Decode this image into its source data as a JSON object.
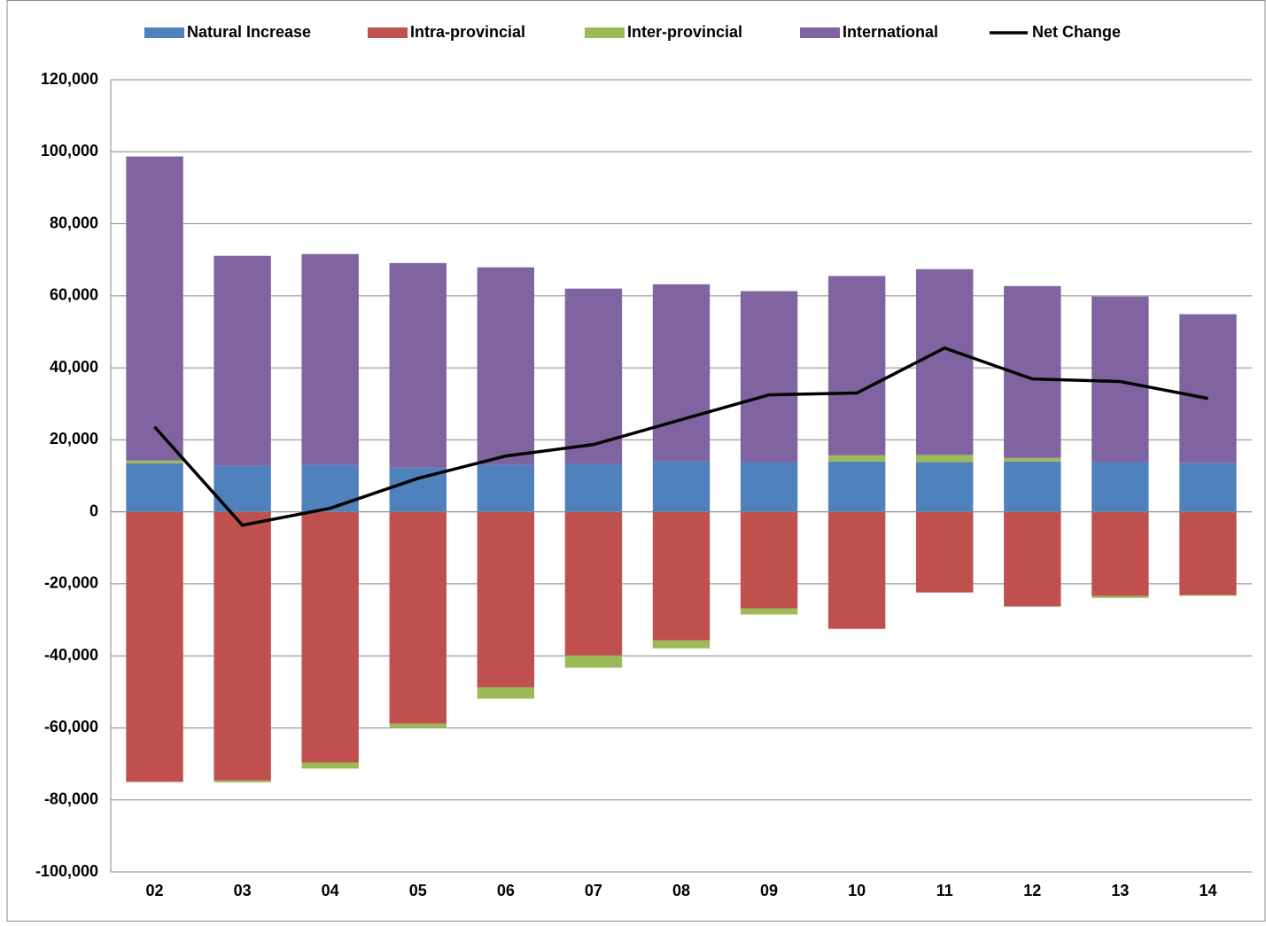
{
  "chart_data": {
    "type": "bar",
    "categories": [
      "02",
      "03",
      "04",
      "05",
      "06",
      "07",
      "08",
      "09",
      "10",
      "11",
      "12",
      "13",
      "14"
    ],
    "series": [
      {
        "name": "Natural Increase",
        "color": "#4f81bd",
        "values": [
          13500,
          12800,
          13000,
          12300,
          13000,
          13300,
          14000,
          13800,
          14000,
          13800,
          14000,
          13800,
          13500
        ]
      },
      {
        "name": "Intra-provincial",
        "color": "#c0504d",
        "values": [
          -75000,
          -74600,
          -69600,
          -58800,
          -48700,
          -39900,
          -35700,
          -26800,
          -32500,
          -22400,
          -26300,
          -23400,
          -23100
        ]
      },
      {
        "name": "Inter-provincial",
        "color": "#9bbb59",
        "values": [
          800,
          -500,
          -1700,
          -1200,
          -3200,
          -3400,
          -2200,
          -1700,
          1700,
          2000,
          1000,
          -500,
          -200
        ]
      },
      {
        "name": "International",
        "color": "#8064a2",
        "values": [
          84400,
          58300,
          58600,
          56800,
          54900,
          48700,
          49200,
          47500,
          49800,
          51600,
          47700,
          46000,
          41400
        ]
      },
      {
        "name": "Net Change",
        "type": "line",
        "color": "#000000",
        "values": [
          23600,
          -3700,
          1000,
          9300,
          15500,
          18700,
          25600,
          32500,
          33000,
          45500,
          36900,
          36200,
          31500
        ]
      }
    ],
    "ylim": [
      -100000,
      120000
    ],
    "yticks": [
      {
        "value": -100000,
        "label": "-100,000"
      },
      {
        "value": -80000,
        "label": "-80,000"
      },
      {
        "value": -60000,
        "label": "-60,000"
      },
      {
        "value": -40000,
        "label": "-40,000"
      },
      {
        "value": -20000,
        "label": "-20,000"
      },
      0,
      {
        "value": 20000,
        "label": "20,000"
      },
      {
        "value": 40000,
        "label": "40,000"
      },
      {
        "value": 60000,
        "label": "60,000"
      },
      {
        "value": 80000,
        "label": "80,000"
      },
      {
        "value": 100000,
        "label": "100,000"
      },
      {
        "value": 120000,
        "label": "120,000"
      }
    ],
    "grid": true,
    "legend": "top"
  }
}
